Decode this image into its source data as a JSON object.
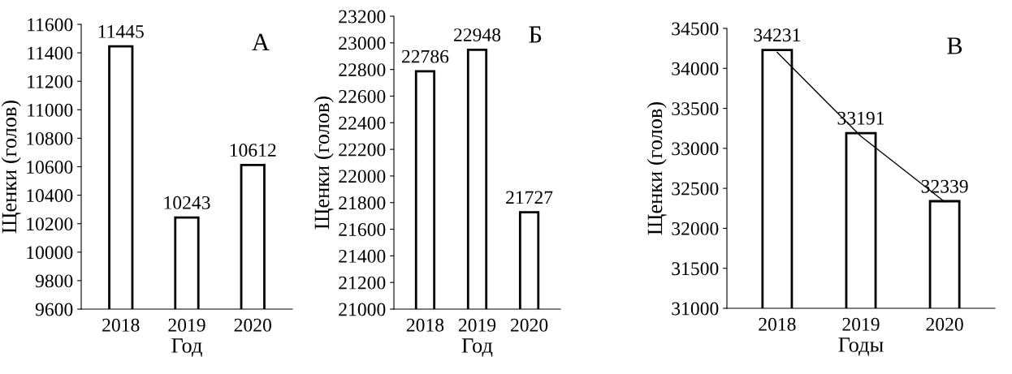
{
  "chart_data": [
    {
      "type": "bar",
      "categories": [
        "2018",
        "2019",
        "2020"
      ],
      "ylabel": "Щенки (голов)",
      "xlabel": "Год",
      "series": [
        {
          "color": "#ffffff",
          "values": [
            11445,
            10243,
            10612
          ]
        }
      ],
      "ylim": [
        9600,
        11600
      ],
      "yticks": [
        9600,
        9800,
        10000,
        10200,
        10400,
        10600,
        10800,
        11000,
        11200,
        11400,
        11600
      ],
      "data_labels": true,
      "annotations": [
        {
          "text": "А"
        }
      ],
      "grid": false,
      "legend": false
    },
    {
      "type": "bar",
      "categories": [
        "2018",
        "2019",
        "2020"
      ],
      "ylabel": "Щенки (голов)",
      "xlabel": "Год",
      "series": [
        {
          "color": "#ffffff",
          "values": [
            22786,
            22948,
            21727
          ]
        }
      ],
      "ylim": [
        21000,
        23200
      ],
      "yticks": [
        21000,
        21200,
        21400,
        21600,
        21800,
        22000,
        22200,
        22400,
        22600,
        22800,
        23000,
        23200
      ],
      "data_labels": true,
      "annotations": [
        {
          "text": "Б"
        }
      ],
      "grid": false,
      "legend": false
    },
    {
      "type": "bar",
      "categories": [
        "2018",
        "2019",
        "2020"
      ],
      "ylabel": "Щенки (голов)",
      "xlabel": "Годы",
      "series": [
        {
          "color": "#ffffff",
          "values": [
            34231,
            33191,
            32339
          ]
        },
        {
          "type": "line",
          "color": "#000000",
          "values": [
            34200,
            33150,
            32330
          ],
          "value_labels": [
            null,
            null,
            null
          ],
          "line_style": "solid"
        }
      ],
      "ylim": [
        31000,
        34500
      ],
      "yticks": [
        31000,
        31500,
        32000,
        32500,
        33000,
        33500,
        34000,
        34500
      ],
      "data_labels": true,
      "annotations": [
        {
          "text": "В"
        }
      ],
      "grid": false,
      "legend": false
    }
  ]
}
